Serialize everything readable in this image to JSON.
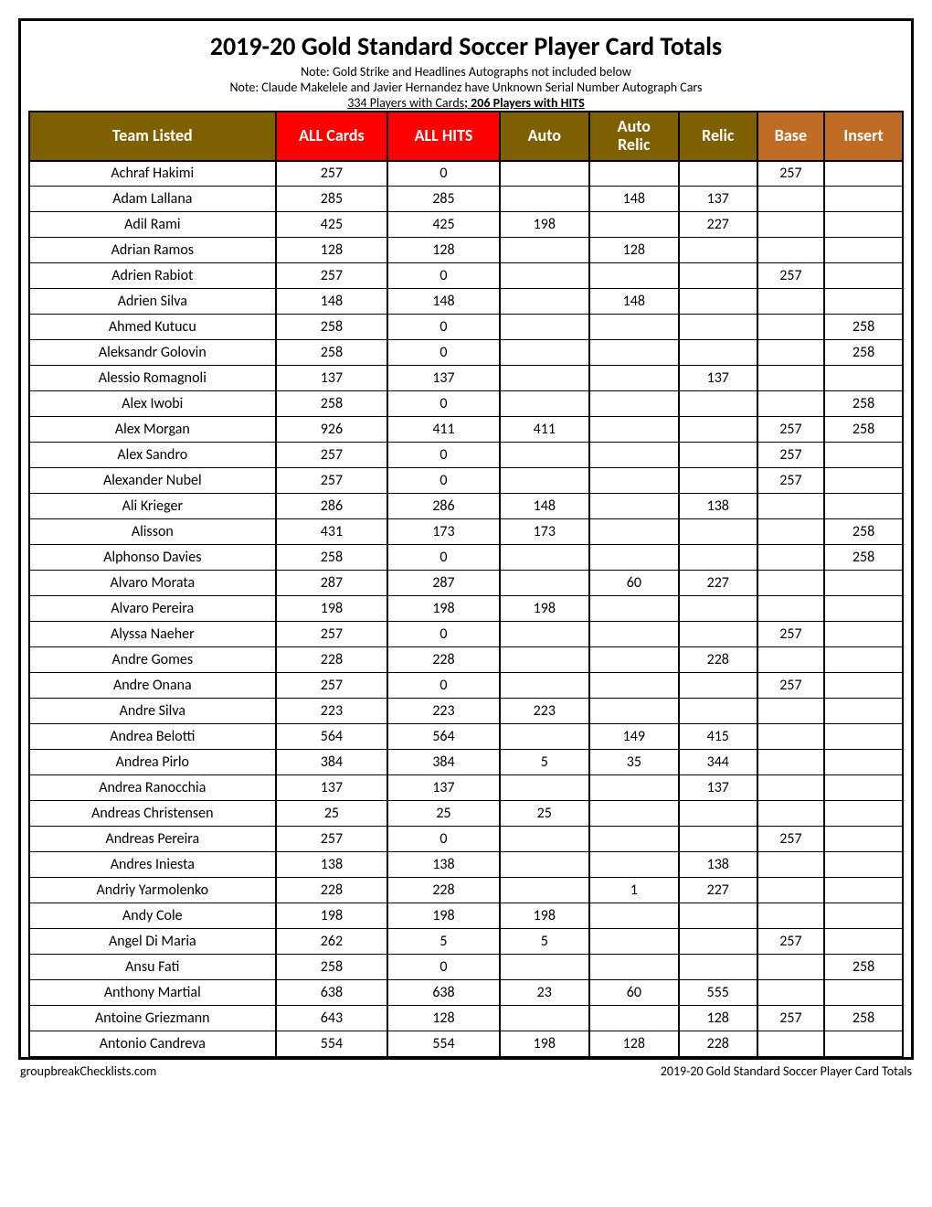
{
  "title": "2019-20 Gold Standard Soccer Player Card Totals",
  "notes": [
    "Note: Gold Strike and Headlines Autographs not included below",
    "Note: Claude Makelele and Javier Hernandez have Unknown Serial Number Autograph Cars"
  ],
  "stats_prefix": "334 Players with Cards",
  "stats_bold": "; 206 Players with HITS",
  "header_colors": {
    "olive": "#7f6000",
    "red": "#ff0000",
    "orange": "#bf6d26"
  },
  "columns": [
    {
      "label": "Team Listed",
      "color": "olive",
      "cls": "team"
    },
    {
      "label": "ALL Cards",
      "color": "red",
      "cls": "allcards"
    },
    {
      "label": "ALL HITS",
      "color": "red",
      "cls": "allhits"
    },
    {
      "label": "Auto",
      "color": "olive",
      "cls": "auto"
    },
    {
      "label": "Auto Relic",
      "color": "olive",
      "cls": "autorelic"
    },
    {
      "label": "Relic",
      "color": "olive",
      "cls": "relic"
    },
    {
      "label": "Base",
      "color": "orange",
      "cls": "base"
    },
    {
      "label": "Insert",
      "color": "orange",
      "cls": "insert"
    }
  ],
  "rows": [
    [
      "Achraf Hakimi",
      "257",
      "0",
      "",
      "",
      "",
      "257",
      ""
    ],
    [
      "Adam Lallana",
      "285",
      "285",
      "",
      "148",
      "137",
      "",
      ""
    ],
    [
      "Adil Rami",
      "425",
      "425",
      "198",
      "",
      "227",
      "",
      ""
    ],
    [
      "Adrian Ramos",
      "128",
      "128",
      "",
      "128",
      "",
      "",
      ""
    ],
    [
      "Adrien Rabiot",
      "257",
      "0",
      "",
      "",
      "",
      "257",
      ""
    ],
    [
      "Adrien Silva",
      "148",
      "148",
      "",
      "148",
      "",
      "",
      ""
    ],
    [
      "Ahmed Kutucu",
      "258",
      "0",
      "",
      "",
      "",
      "",
      "258"
    ],
    [
      "Aleksandr Golovin",
      "258",
      "0",
      "",
      "",
      "",
      "",
      "258"
    ],
    [
      "Alessio Romagnoli",
      "137",
      "137",
      "",
      "",
      "137",
      "",
      ""
    ],
    [
      "Alex Iwobi",
      "258",
      "0",
      "",
      "",
      "",
      "",
      "258"
    ],
    [
      "Alex Morgan",
      "926",
      "411",
      "411",
      "",
      "",
      "257",
      "258"
    ],
    [
      "Alex Sandro",
      "257",
      "0",
      "",
      "",
      "",
      "257",
      ""
    ],
    [
      "Alexander Nubel",
      "257",
      "0",
      "",
      "",
      "",
      "257",
      ""
    ],
    [
      "Ali Krieger",
      "286",
      "286",
      "148",
      "",
      "138",
      "",
      ""
    ],
    [
      "Alisson",
      "431",
      "173",
      "173",
      "",
      "",
      "",
      "258"
    ],
    [
      "Alphonso Davies",
      "258",
      "0",
      "",
      "",
      "",
      "",
      "258"
    ],
    [
      "Alvaro Morata",
      "287",
      "287",
      "",
      "60",
      "227",
      "",
      ""
    ],
    [
      "Alvaro Pereira",
      "198",
      "198",
      "198",
      "",
      "",
      "",
      ""
    ],
    [
      "Alyssa Naeher",
      "257",
      "0",
      "",
      "",
      "",
      "257",
      ""
    ],
    [
      "Andre Gomes",
      "228",
      "228",
      "",
      "",
      "228",
      "",
      ""
    ],
    [
      "Andre Onana",
      "257",
      "0",
      "",
      "",
      "",
      "257",
      ""
    ],
    [
      "Andre Silva",
      "223",
      "223",
      "223",
      "",
      "",
      "",
      ""
    ],
    [
      "Andrea Belotti",
      "564",
      "564",
      "",
      "149",
      "415",
      "",
      ""
    ],
    [
      "Andrea Pirlo",
      "384",
      "384",
      "5",
      "35",
      "344",
      "",
      ""
    ],
    [
      "Andrea Ranocchia",
      "137",
      "137",
      "",
      "",
      "137",
      "",
      ""
    ],
    [
      "Andreas Christensen",
      "25",
      "25",
      "25",
      "",
      "",
      "",
      ""
    ],
    [
      "Andreas Pereira",
      "257",
      "0",
      "",
      "",
      "",
      "257",
      ""
    ],
    [
      "Andres Iniesta",
      "138",
      "138",
      "",
      "",
      "138",
      "",
      ""
    ],
    [
      "Andriy Yarmolenko",
      "228",
      "228",
      "",
      "1",
      "227",
      "",
      ""
    ],
    [
      "Andy Cole",
      "198",
      "198",
      "198",
      "",
      "",
      "",
      ""
    ],
    [
      "Angel Di Maria",
      "262",
      "5",
      "5",
      "",
      "",
      "257",
      ""
    ],
    [
      "Ansu Fati",
      "258",
      "0",
      "",
      "",
      "",
      "",
      "258"
    ],
    [
      "Anthony Martial",
      "638",
      "638",
      "23",
      "60",
      "555",
      "",
      ""
    ],
    [
      "Antoine Griezmann",
      "643",
      "128",
      "",
      "",
      "128",
      "257",
      "258"
    ],
    [
      "Antonio Candreva",
      "554",
      "554",
      "198",
      "128",
      "228",
      "",
      ""
    ]
  ],
  "footer_left": "groupbreakChecklists.com",
  "footer_right": "2019-20 Gold Standard Soccer Player Card Totals"
}
